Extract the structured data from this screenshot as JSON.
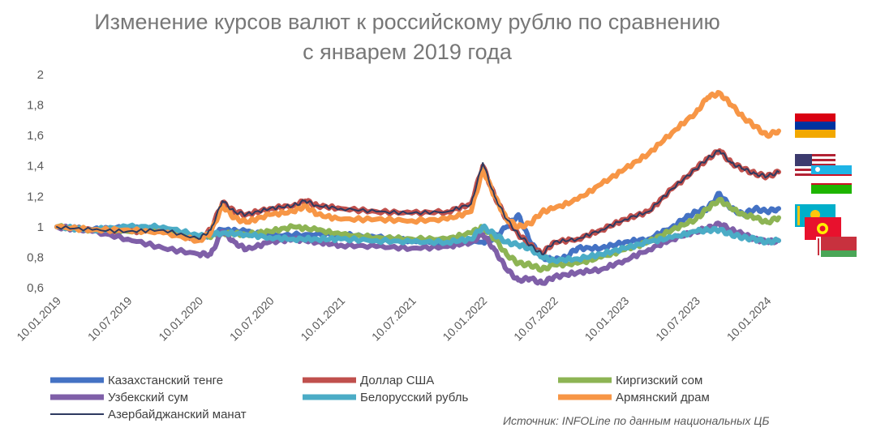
{
  "chart_data": {
    "type": "line",
    "title": [
      "Изменение курсов валют к российскому рублю по сравнению",
      "с январем 2019 года"
    ],
    "xlabel": "",
    "ylabel": "",
    "ylim": [
      0.6,
      2
    ],
    "yticks": [
      "0,6",
      "0,8",
      "1",
      "1,2",
      "1,4",
      "1,6",
      "1,8",
      "2"
    ],
    "ytick_values": [
      0.6,
      0.8,
      1.0,
      1.2,
      1.4,
      1.6,
      1.8,
      2.0
    ],
    "xticks": [
      "10.01.2019",
      "10.07.2019",
      "10.01.2020",
      "10.07.2020",
      "10.01.2021",
      "10.07.2021",
      "10.01.2022",
      "10.07.2022",
      "10.01.2023",
      "10.07.2023",
      "10.01.2024"
    ],
    "x_months_range": [
      0,
      61
    ],
    "grid": false,
    "series": [
      {
        "name": "Казахстанский тенге",
        "color": "#4472C4",
        "points": [
          [
            0,
            1.0
          ],
          [
            3,
            0.98
          ],
          [
            6,
            1.0
          ],
          [
            9,
            0.98
          ],
          [
            12,
            0.92
          ],
          [
            14,
            0.98
          ],
          [
            16,
            0.97
          ],
          [
            18,
            0.94
          ],
          [
            21,
            0.95
          ],
          [
            24,
            0.95
          ],
          [
            27,
            0.93
          ],
          [
            30,
            0.91
          ],
          [
            33,
            0.9
          ],
          [
            36,
            0.9
          ],
          [
            37,
            0.93
          ],
          [
            38,
            1.0
          ],
          [
            39,
            1.08
          ],
          [
            40,
            0.9
          ],
          [
            41,
            0.8
          ],
          [
            42,
            0.78
          ],
          [
            43,
            0.8
          ],
          [
            44,
            0.86
          ],
          [
            46,
            0.86
          ],
          [
            48,
            0.9
          ],
          [
            50,
            0.92
          ],
          [
            52,
            1.0
          ],
          [
            53,
            1.05
          ],
          [
            54,
            1.1
          ],
          [
            55,
            1.12
          ],
          [
            56,
            1.22
          ],
          [
            57,
            1.12
          ],
          [
            58,
            1.08
          ],
          [
            59,
            1.12
          ],
          [
            60,
            1.1
          ],
          [
            61,
            1.12
          ]
        ]
      },
      {
        "name": "Доллар США",
        "color": "#C0504D",
        "points": [
          [
            0,
            1.0
          ],
          [
            3,
            0.98
          ],
          [
            6,
            0.97
          ],
          [
            9,
            0.98
          ],
          [
            12,
            0.92
          ],
          [
            13,
            0.98
          ],
          [
            14,
            1.16
          ],
          [
            15,
            1.1
          ],
          [
            16,
            1.08
          ],
          [
            18,
            1.12
          ],
          [
            20,
            1.14
          ],
          [
            21,
            1.17
          ],
          [
            22,
            1.14
          ],
          [
            24,
            1.12
          ],
          [
            27,
            1.1
          ],
          [
            30,
            1.09
          ],
          [
            33,
            1.1
          ],
          [
            35,
            1.15
          ],
          [
            36,
            1.4
          ],
          [
            37,
            1.2
          ],
          [
            38,
            1.05
          ],
          [
            39,
            0.95
          ],
          [
            40,
            0.88
          ],
          [
            41,
            0.82
          ],
          [
            42,
            0.9
          ],
          [
            44,
            0.92
          ],
          [
            46,
            0.98
          ],
          [
            48,
            1.05
          ],
          [
            50,
            1.1
          ],
          [
            52,
            1.25
          ],
          [
            54,
            1.38
          ],
          [
            55,
            1.45
          ],
          [
            56,
            1.5
          ],
          [
            57,
            1.42
          ],
          [
            58,
            1.38
          ],
          [
            59,
            1.35
          ],
          [
            60,
            1.33
          ],
          [
            61,
            1.36
          ]
        ]
      },
      {
        "name": "Киргизский сом",
        "color": "#8DB454",
        "points": [
          [
            0,
            1.0
          ],
          [
            3,
            0.98
          ],
          [
            6,
            0.97
          ],
          [
            9,
            0.98
          ],
          [
            12,
            0.92
          ],
          [
            14,
            0.96
          ],
          [
            16,
            0.95
          ],
          [
            18,
            0.97
          ],
          [
            20,
            1.0
          ],
          [
            22,
            0.98
          ],
          [
            24,
            0.95
          ],
          [
            27,
            0.93
          ],
          [
            30,
            0.92
          ],
          [
            33,
            0.92
          ],
          [
            35,
            0.96
          ],
          [
            36,
            1.0
          ],
          [
            37,
            0.92
          ],
          [
            38,
            0.82
          ],
          [
            39,
            0.76
          ],
          [
            40,
            0.75
          ],
          [
            41,
            0.72
          ],
          [
            42,
            0.75
          ],
          [
            44,
            0.76
          ],
          [
            46,
            0.8
          ],
          [
            48,
            0.85
          ],
          [
            50,
            0.9
          ],
          [
            52,
            0.98
          ],
          [
            54,
            1.05
          ],
          [
            55,
            1.12
          ],
          [
            56,
            1.18
          ],
          [
            57,
            1.12
          ],
          [
            58,
            1.08
          ],
          [
            59,
            1.06
          ],
          [
            60,
            1.03
          ],
          [
            61,
            1.06
          ]
        ]
      },
      {
        "name": "Узбекский сум",
        "color": "#7F5FA8",
        "points": [
          [
            0,
            1.0
          ],
          [
            3,
            0.97
          ],
          [
            6,
            0.92
          ],
          [
            9,
            0.86
          ],
          [
            12,
            0.82
          ],
          [
            13,
            0.82
          ],
          [
            14,
            0.97
          ],
          [
            15,
            0.9
          ],
          [
            16,
            0.85
          ],
          [
            18,
            0.9
          ],
          [
            20,
            0.92
          ],
          [
            22,
            0.9
          ],
          [
            24,
            0.88
          ],
          [
            27,
            0.87
          ],
          [
            30,
            0.86
          ],
          [
            33,
            0.87
          ],
          [
            35,
            0.9
          ],
          [
            36,
            0.95
          ],
          [
            37,
            0.85
          ],
          [
            38,
            0.72
          ],
          [
            39,
            0.65
          ],
          [
            40,
            0.66
          ],
          [
            41,
            0.63
          ],
          [
            42,
            0.67
          ],
          [
            44,
            0.7
          ],
          [
            46,
            0.72
          ],
          [
            48,
            0.78
          ],
          [
            50,
            0.85
          ],
          [
            52,
            0.92
          ],
          [
            54,
            0.97
          ],
          [
            55,
            0.99
          ],
          [
            56,
            1.02
          ],
          [
            57,
            0.98
          ],
          [
            58,
            0.95
          ],
          [
            59,
            0.92
          ],
          [
            60,
            0.9
          ],
          [
            61,
            0.91
          ]
        ]
      },
      {
        "name": "Белорусский рубль",
        "color": "#4BACC6",
        "points": [
          [
            0,
            1.0
          ],
          [
            3,
            0.98
          ],
          [
            6,
            1.0
          ],
          [
            9,
            1.0
          ],
          [
            12,
            0.94
          ],
          [
            14,
            0.96
          ],
          [
            16,
            0.95
          ],
          [
            18,
            0.93
          ],
          [
            20,
            0.92
          ],
          [
            22,
            0.92
          ],
          [
            24,
            0.92
          ],
          [
            27,
            0.91
          ],
          [
            30,
            0.9
          ],
          [
            33,
            0.9
          ],
          [
            35,
            0.92
          ],
          [
            36,
            1.0
          ],
          [
            37,
            0.95
          ],
          [
            38,
            0.9
          ],
          [
            39,
            0.88
          ],
          [
            40,
            0.86
          ],
          [
            41,
            0.8
          ],
          [
            42,
            0.78
          ],
          [
            44,
            0.79
          ],
          [
            46,
            0.82
          ],
          [
            48,
            0.86
          ],
          [
            50,
            0.9
          ],
          [
            52,
            0.93
          ],
          [
            54,
            0.97
          ],
          [
            55,
            0.98
          ],
          [
            56,
            0.98
          ],
          [
            57,
            0.95
          ],
          [
            58,
            0.93
          ],
          [
            59,
            0.92
          ],
          [
            60,
            0.9
          ],
          [
            61,
            0.91
          ]
        ]
      },
      {
        "name": "Армянский драм",
        "color": "#F79646",
        "points": [
          [
            0,
            1.0
          ],
          [
            3,
            0.98
          ],
          [
            6,
            0.98
          ],
          [
            9,
            0.96
          ],
          [
            12,
            0.91
          ],
          [
            13,
            0.96
          ],
          [
            14,
            1.14
          ],
          [
            15,
            1.06
          ],
          [
            16,
            1.03
          ],
          [
            18,
            1.08
          ],
          [
            20,
            1.1
          ],
          [
            21,
            1.14
          ],
          [
            22,
            1.08
          ],
          [
            24,
            1.05
          ],
          [
            27,
            1.05
          ],
          [
            30,
            1.04
          ],
          [
            33,
            1.05
          ],
          [
            35,
            1.1
          ],
          [
            36,
            1.38
          ],
          [
            37,
            1.2
          ],
          [
            38,
            1.05
          ],
          [
            39,
            1.0
          ],
          [
            40,
            1.02
          ],
          [
            41,
            1.1
          ],
          [
            42,
            1.12
          ],
          [
            44,
            1.18
          ],
          [
            46,
            1.28
          ],
          [
            48,
            1.38
          ],
          [
            50,
            1.48
          ],
          [
            52,
            1.62
          ],
          [
            54,
            1.75
          ],
          [
            55,
            1.85
          ],
          [
            56,
            1.88
          ],
          [
            57,
            1.8
          ],
          [
            58,
            1.72
          ],
          [
            59,
            1.66
          ],
          [
            60,
            1.6
          ],
          [
            61,
            1.63
          ]
        ]
      },
      {
        "name": "Азербайджанский манат",
        "color": "#2E3A60",
        "points": [
          [
            0,
            1.0
          ],
          [
            3,
            0.98
          ],
          [
            6,
            0.97
          ],
          [
            9,
            0.98
          ],
          [
            12,
            0.92
          ],
          [
            13,
            0.98
          ],
          [
            14,
            1.17
          ],
          [
            15,
            1.1
          ],
          [
            16,
            1.08
          ],
          [
            18,
            1.12
          ],
          [
            20,
            1.14
          ],
          [
            21,
            1.17
          ],
          [
            22,
            1.14
          ],
          [
            24,
            1.12
          ],
          [
            27,
            1.1
          ],
          [
            30,
            1.09
          ],
          [
            33,
            1.1
          ],
          [
            35,
            1.15
          ],
          [
            36,
            1.42
          ],
          [
            37,
            1.2
          ],
          [
            38,
            1.05
          ],
          [
            39,
            0.95
          ],
          [
            40,
            0.88
          ],
          [
            41,
            0.82
          ],
          [
            42,
            0.9
          ],
          [
            44,
            0.92
          ],
          [
            46,
            0.98
          ],
          [
            48,
            1.05
          ],
          [
            50,
            1.1
          ],
          [
            52,
            1.25
          ],
          [
            54,
            1.38
          ],
          [
            55,
            1.45
          ],
          [
            56,
            1.5
          ],
          [
            57,
            1.42
          ],
          [
            58,
            1.38
          ],
          [
            59,
            1.35
          ],
          [
            60,
            1.33
          ],
          [
            61,
            1.36
          ]
        ]
      }
    ],
    "legend": {
      "items": [
        "Казахстанский тенге",
        "Доллар США",
        "Киргизский сом",
        "Узбекский сум",
        "Белорусский рубль",
        "Армянский драм",
        "Азербайджанский манат"
      ],
      "placement": "bottom"
    },
    "flags": [
      "armenia-flag",
      "usa-flag",
      "uzbekistan-flag",
      "kazakhstan-flag",
      "kyrgyzstan-flag",
      "belarus-flag"
    ],
    "source": "Источник: INFOLine по данным национальных ЦБ"
  }
}
